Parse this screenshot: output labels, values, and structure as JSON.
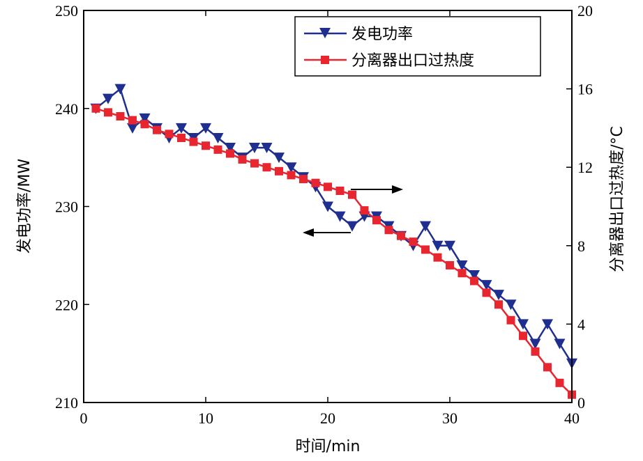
{
  "chart_data": {
    "type": "line",
    "xlabel": "时间/min",
    "ylabel_left": "发电功率/MW",
    "ylabel_right": "分离器出口过热度/°C",
    "xlim": [
      0,
      40
    ],
    "ylim_left": [
      210,
      250
    ],
    "ylim_right": [
      0,
      20
    ],
    "x_ticks": [
      "0",
      "10",
      "20",
      "30",
      "40"
    ],
    "y_left_ticks": [
      "210",
      "220",
      "230",
      "240",
      "250"
    ],
    "y_right_ticks": [
      "0",
      "4",
      "8",
      "12",
      "16",
      "20"
    ],
    "grid": false,
    "legend_position": "top-right",
    "series": [
      {
        "name": "发电功率",
        "axis": "left",
        "color": "#1f2f8f",
        "marker": "triangle-down",
        "x": [
          1,
          2,
          3,
          4,
          5,
          6,
          7,
          8,
          9,
          10,
          11,
          12,
          13,
          14,
          15,
          16,
          17,
          18,
          19,
          20,
          21,
          22,
          23,
          24,
          25,
          26,
          27,
          28,
          29,
          30,
          31,
          32,
          33,
          34,
          35,
          36,
          37,
          38,
          39,
          40
        ],
        "values": [
          240,
          241,
          242,
          238,
          239,
          238,
          237,
          238,
          237,
          238,
          237,
          236,
          235,
          236,
          236,
          235,
          234,
          233,
          232,
          230,
          229,
          228,
          229,
          229,
          228,
          227,
          226,
          228,
          226,
          226,
          224,
          223,
          222,
          221,
          220,
          218,
          216,
          218,
          216,
          214
        ]
      },
      {
        "name": "分离器出口过热度",
        "axis": "right",
        "color": "#e8262f",
        "marker": "square",
        "x": [
          1,
          2,
          3,
          4,
          5,
          6,
          7,
          8,
          9,
          10,
          11,
          12,
          13,
          14,
          15,
          16,
          17,
          18,
          19,
          20,
          21,
          22,
          23,
          24,
          25,
          26,
          27,
          28,
          29,
          30,
          31,
          32,
          33,
          34,
          35,
          36,
          37,
          38,
          39,
          40
        ],
        "values": [
          15.0,
          14.8,
          14.6,
          14.4,
          14.2,
          13.9,
          13.7,
          13.5,
          13.3,
          13.1,
          12.9,
          12.7,
          12.4,
          12.2,
          12.0,
          11.8,
          11.6,
          11.4,
          11.2,
          11.0,
          10.8,
          10.6,
          9.8,
          9.3,
          8.8,
          8.5,
          8.2,
          7.8,
          7.4,
          7.0,
          6.6,
          6.2,
          5.6,
          5.0,
          4.2,
          3.4,
          2.6,
          1.8,
          1.0,
          0.4
        ]
      }
    ]
  }
}
